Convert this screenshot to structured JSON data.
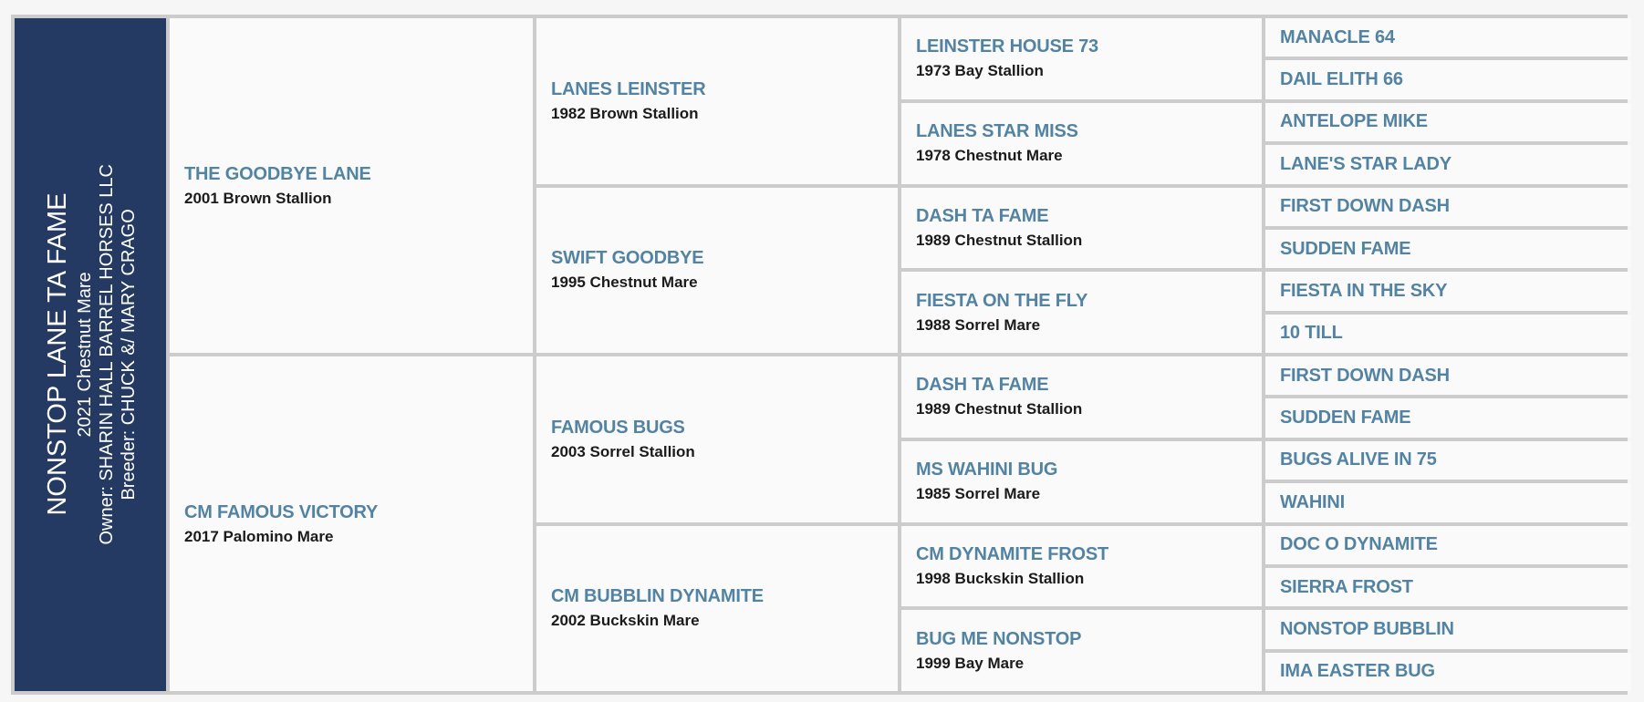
{
  "subject": {
    "name": "NONSTOP LANE TA FAME",
    "detail": "2021 Chestnut Mare",
    "owner": "Owner: SHARIN HALL BARREL HORSES LLC",
    "breeder": "Breeder: CHUCK &/ MARY CRAGO"
  },
  "gen1": [
    {
      "name": "THE GOODBYE LANE",
      "detail": "2001 Brown Stallion"
    },
    {
      "name": "CM FAMOUS VICTORY",
      "detail": "2017 Palomino Mare"
    }
  ],
  "gen2": [
    {
      "name": "LANES LEINSTER",
      "detail": "1982 Brown Stallion"
    },
    {
      "name": "SWIFT GOODBYE",
      "detail": "1995 Chestnut Mare"
    },
    {
      "name": "FAMOUS BUGS",
      "detail": "2003 Sorrel Stallion"
    },
    {
      "name": "CM BUBBLIN DYNAMITE",
      "detail": "2002 Buckskin Mare"
    }
  ],
  "gen3": [
    {
      "name": "LEINSTER HOUSE 73",
      "detail": "1973 Bay Stallion"
    },
    {
      "name": "LANES STAR MISS",
      "detail": "1978 Chestnut Mare"
    },
    {
      "name": "DASH TA FAME",
      "detail": "1989 Chestnut Stallion"
    },
    {
      "name": "FIESTA ON THE FLY",
      "detail": "1988 Sorrel Mare"
    },
    {
      "name": "DASH TA FAME",
      "detail": "1989 Chestnut Stallion"
    },
    {
      "name": "MS WAHINI BUG",
      "detail": "1985 Sorrel Mare"
    },
    {
      "name": "CM DYNAMITE FROST",
      "detail": "1998 Buckskin Stallion"
    },
    {
      "name": "BUG ME NONSTOP",
      "detail": "1999 Bay Mare"
    }
  ],
  "gen4": [
    "MANACLE 64",
    "DAIL ELITH 66",
    "ANTELOPE MIKE",
    "LANE'S STAR LADY",
    "FIRST DOWN DASH",
    "SUDDEN FAME",
    "FIESTA IN THE SKY",
    "10 TILL",
    "FIRST DOWN DASH",
    "SUDDEN FAME",
    "BUGS ALIVE IN 75",
    "WAHINI",
    "DOC O DYNAMITE",
    "SIERRA FROST",
    "NONSTOP BUBBLIN",
    "IMA EASTER BUG"
  ],
  "colors": {
    "subject_bg": "#243a63",
    "name": "#5383a3",
    "border": "#cccccc"
  }
}
